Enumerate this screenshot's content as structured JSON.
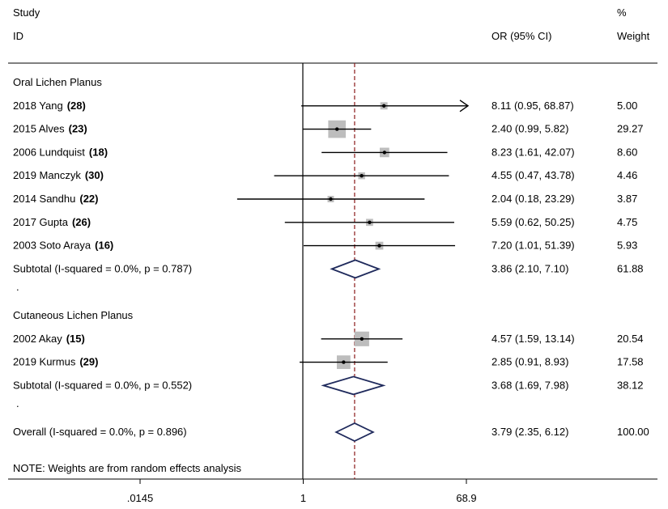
{
  "header": {
    "study_label": "Study",
    "id_label": "ID",
    "or_label": "OR (95% CI)",
    "pct_label": "%",
    "weight_label": "Weight"
  },
  "note": "NOTE: Weights are from random effects analysis",
  "colors": {
    "ci_line": "#000000",
    "weight_box": "#bdbdbd",
    "diamond": "#1f2a5c",
    "overall_line": "#8b1a1a"
  },
  "chart_data": {
    "type": "forest",
    "x_scale": "log",
    "xlim": [
      0.0145,
      68.9
    ],
    "x_ticks": [
      {
        "value": 0.0145,
        "label": ".0145"
      },
      {
        "value": 1,
        "label": "1"
      },
      {
        "value": 68.9,
        "label": "68.9"
      }
    ],
    "null_line": 1,
    "overall_estimate": 3.79,
    "rows": [
      {
        "kind": "group",
        "label": "Oral Lichen Planus"
      },
      {
        "kind": "study",
        "name": "2018 Yang",
        "ref": "(28)",
        "or": 8.11,
        "lower": 0.95,
        "upper": 68.87,
        "ci_text": "8.11 (0.95, 68.87)",
        "weight": "5.00",
        "arrow_right": true
      },
      {
        "kind": "study",
        "name": "2015 Alves",
        "ref": "(23)",
        "or": 2.4,
        "lower": 0.99,
        "upper": 5.82,
        "ci_text": "2.40 (0.99, 5.82)",
        "weight": "29.27"
      },
      {
        "kind": "study",
        "name": "2006 Lundquist",
        "ref": "(18)",
        "or": 8.23,
        "lower": 1.61,
        "upper": 42.07,
        "ci_text": "8.23 (1.61, 42.07)",
        "weight": "8.60"
      },
      {
        "kind": "study",
        "name": "2019 Manczyk",
        "ref": "(30)",
        "or": 4.55,
        "lower": 0.47,
        "upper": 43.78,
        "ci_text": "4.55 (0.47, 43.78)",
        "weight": "4.46"
      },
      {
        "kind": "study",
        "name": "2014 Sandhu",
        "ref": "(22)",
        "or": 2.04,
        "lower": 0.18,
        "upper": 23.29,
        "ci_text": "2.04 (0.18, 23.29)",
        "weight": "3.87"
      },
      {
        "kind": "study",
        "name": "2017 Gupta",
        "ref": "(26)",
        "or": 5.59,
        "lower": 0.62,
        "upper": 50.25,
        "ci_text": "5.59 (0.62, 50.25)",
        "weight": "4.75"
      },
      {
        "kind": "study",
        "name": "2003 Soto Araya",
        "ref": "(16)",
        "or": 7.2,
        "lower": 1.01,
        "upper": 51.39,
        "ci_text": "7.20 (1.01, 51.39)",
        "weight": "5.93"
      },
      {
        "kind": "subtotal",
        "label": "Subtotal  (I-squared = 0.0%, p = 0.787)",
        "or": 3.86,
        "lower": 2.1,
        "upper": 7.1,
        "ci_text": "3.86 (2.10, 7.10)",
        "weight": "61.88"
      },
      {
        "kind": "spacer",
        "label": "."
      },
      {
        "kind": "group",
        "label": "Cutaneous Lichen Planus"
      },
      {
        "kind": "study",
        "name": "2002 Akay",
        "ref": "(15)",
        "or": 4.57,
        "lower": 1.59,
        "upper": 13.14,
        "ci_text": "4.57 (1.59, 13.14)",
        "weight": "20.54"
      },
      {
        "kind": "study",
        "name": "2019 Kurmus",
        "ref": "(29)",
        "or": 2.85,
        "lower": 0.91,
        "upper": 8.93,
        "ci_text": "2.85 (0.91, 8.93)",
        "weight": "17.58"
      },
      {
        "kind": "subtotal",
        "label": "Subtotal  (I-squared = 0.0%, p = 0.552)",
        "or": 3.68,
        "lower": 1.69,
        "upper": 7.98,
        "ci_text": "3.68 (1.69, 7.98)",
        "weight": "38.12"
      },
      {
        "kind": "spacer",
        "label": "."
      },
      {
        "kind": "overall",
        "label": "Overall  (I-squared = 0.0%, p = 0.896)",
        "or": 3.79,
        "lower": 2.35,
        "upper": 6.12,
        "ci_text": "3.79 (2.35, 6.12)",
        "weight": "100.00"
      }
    ]
  }
}
